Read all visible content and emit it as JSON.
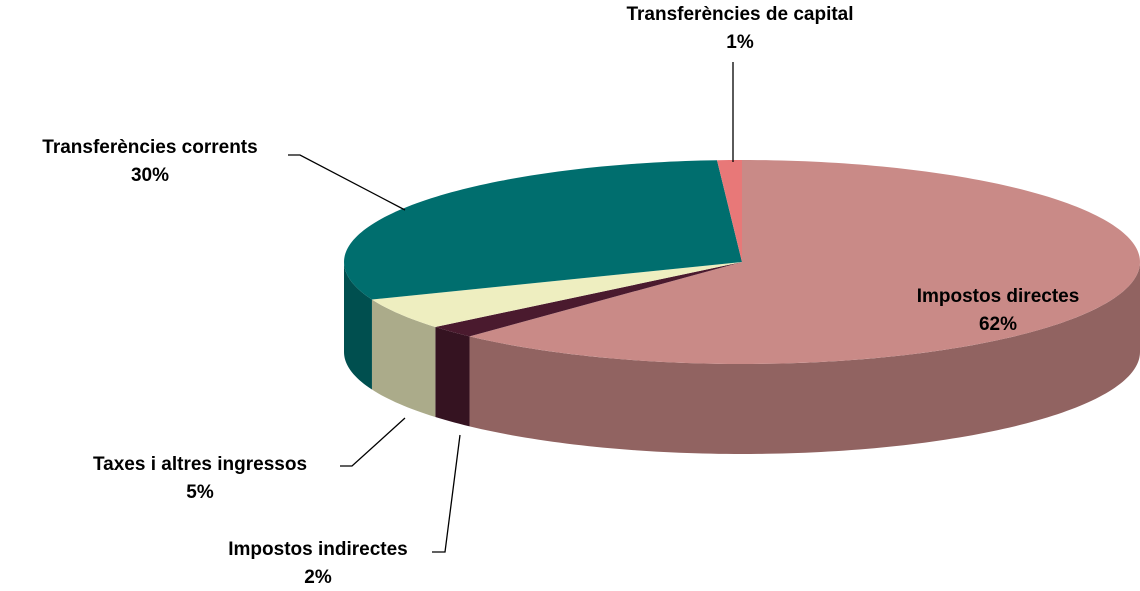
{
  "chart_data": {
    "type": "pie3d",
    "categories": [
      "Impostos directes",
      "Impostos indirectes",
      "Taxes i altres ingressos",
      "Transferències corrents",
      "Transferències de capital"
    ],
    "values": [
      62,
      2,
      5,
      30,
      1
    ],
    "value_labels": [
      "62%",
      "2%",
      "5%",
      "30%",
      "1%"
    ],
    "colors": [
      "#c98a87",
      "#4a1a2e",
      "#eeeec0",
      "#006e6e",
      "#e87878"
    ]
  }
}
